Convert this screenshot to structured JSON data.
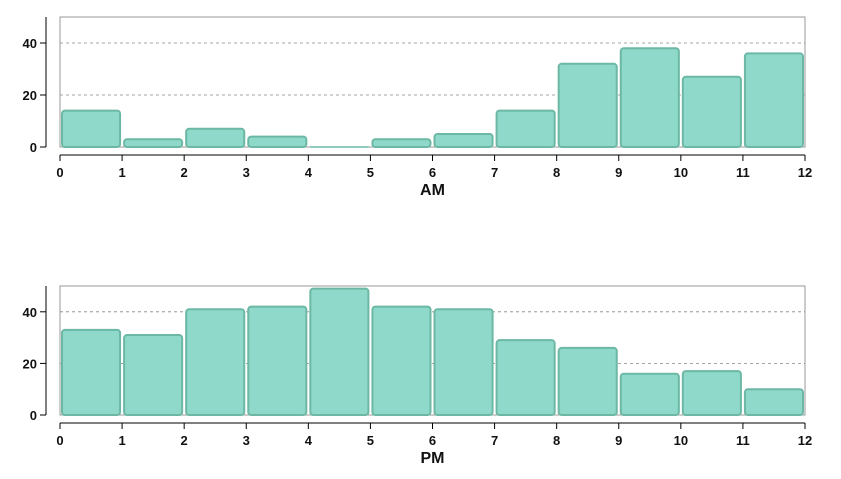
{
  "chart_data": [
    {
      "type": "bar",
      "xlabel": "AM",
      "ylabel": "",
      "x_ticks": [
        0,
        1,
        2,
        3,
        4,
        5,
        6,
        7,
        8,
        9,
        10,
        11,
        12
      ],
      "y_ticks": [
        0,
        20,
        40
      ],
      "xlim": [
        0,
        12
      ],
      "ylim": [
        0,
        50
      ],
      "bins": [
        [
          0,
          1
        ],
        [
          1,
          2
        ],
        [
          2,
          3
        ],
        [
          3,
          4
        ],
        [
          4,
          5
        ],
        [
          5,
          6
        ],
        [
          6,
          7
        ],
        [
          7,
          8
        ],
        [
          8,
          9
        ],
        [
          9,
          10
        ],
        [
          10,
          11
        ],
        [
          11,
          12
        ]
      ],
      "values": [
        14,
        3,
        7,
        4,
        0,
        3,
        5,
        14,
        32,
        38,
        27,
        36
      ],
      "bar_color": "#8ed9c9",
      "bar_edge_color": "#6cb8a5",
      "grid": "horizontal dashed"
    },
    {
      "type": "bar",
      "xlabel": "PM",
      "ylabel": "",
      "x_ticks": [
        0,
        1,
        2,
        3,
        4,
        5,
        6,
        7,
        8,
        9,
        10,
        11,
        12
      ],
      "y_ticks": [
        0,
        20,
        40
      ],
      "xlim": [
        0,
        12
      ],
      "ylim": [
        0,
        50
      ],
      "bins": [
        [
          0,
          1
        ],
        [
          1,
          2
        ],
        [
          2,
          3
        ],
        [
          3,
          4
        ],
        [
          4,
          5
        ],
        [
          5,
          6
        ],
        [
          6,
          7
        ],
        [
          7,
          8
        ],
        [
          8,
          9
        ],
        [
          9,
          10
        ],
        [
          10,
          11
        ],
        [
          11,
          12
        ]
      ],
      "values": [
        33,
        31,
        41,
        42,
        49,
        42,
        41,
        29,
        26,
        16,
        17,
        10
      ],
      "bar_color": "#8ed9c9",
      "bar_edge_color": "#6cb8a5",
      "grid": "horizontal dashed"
    }
  ]
}
